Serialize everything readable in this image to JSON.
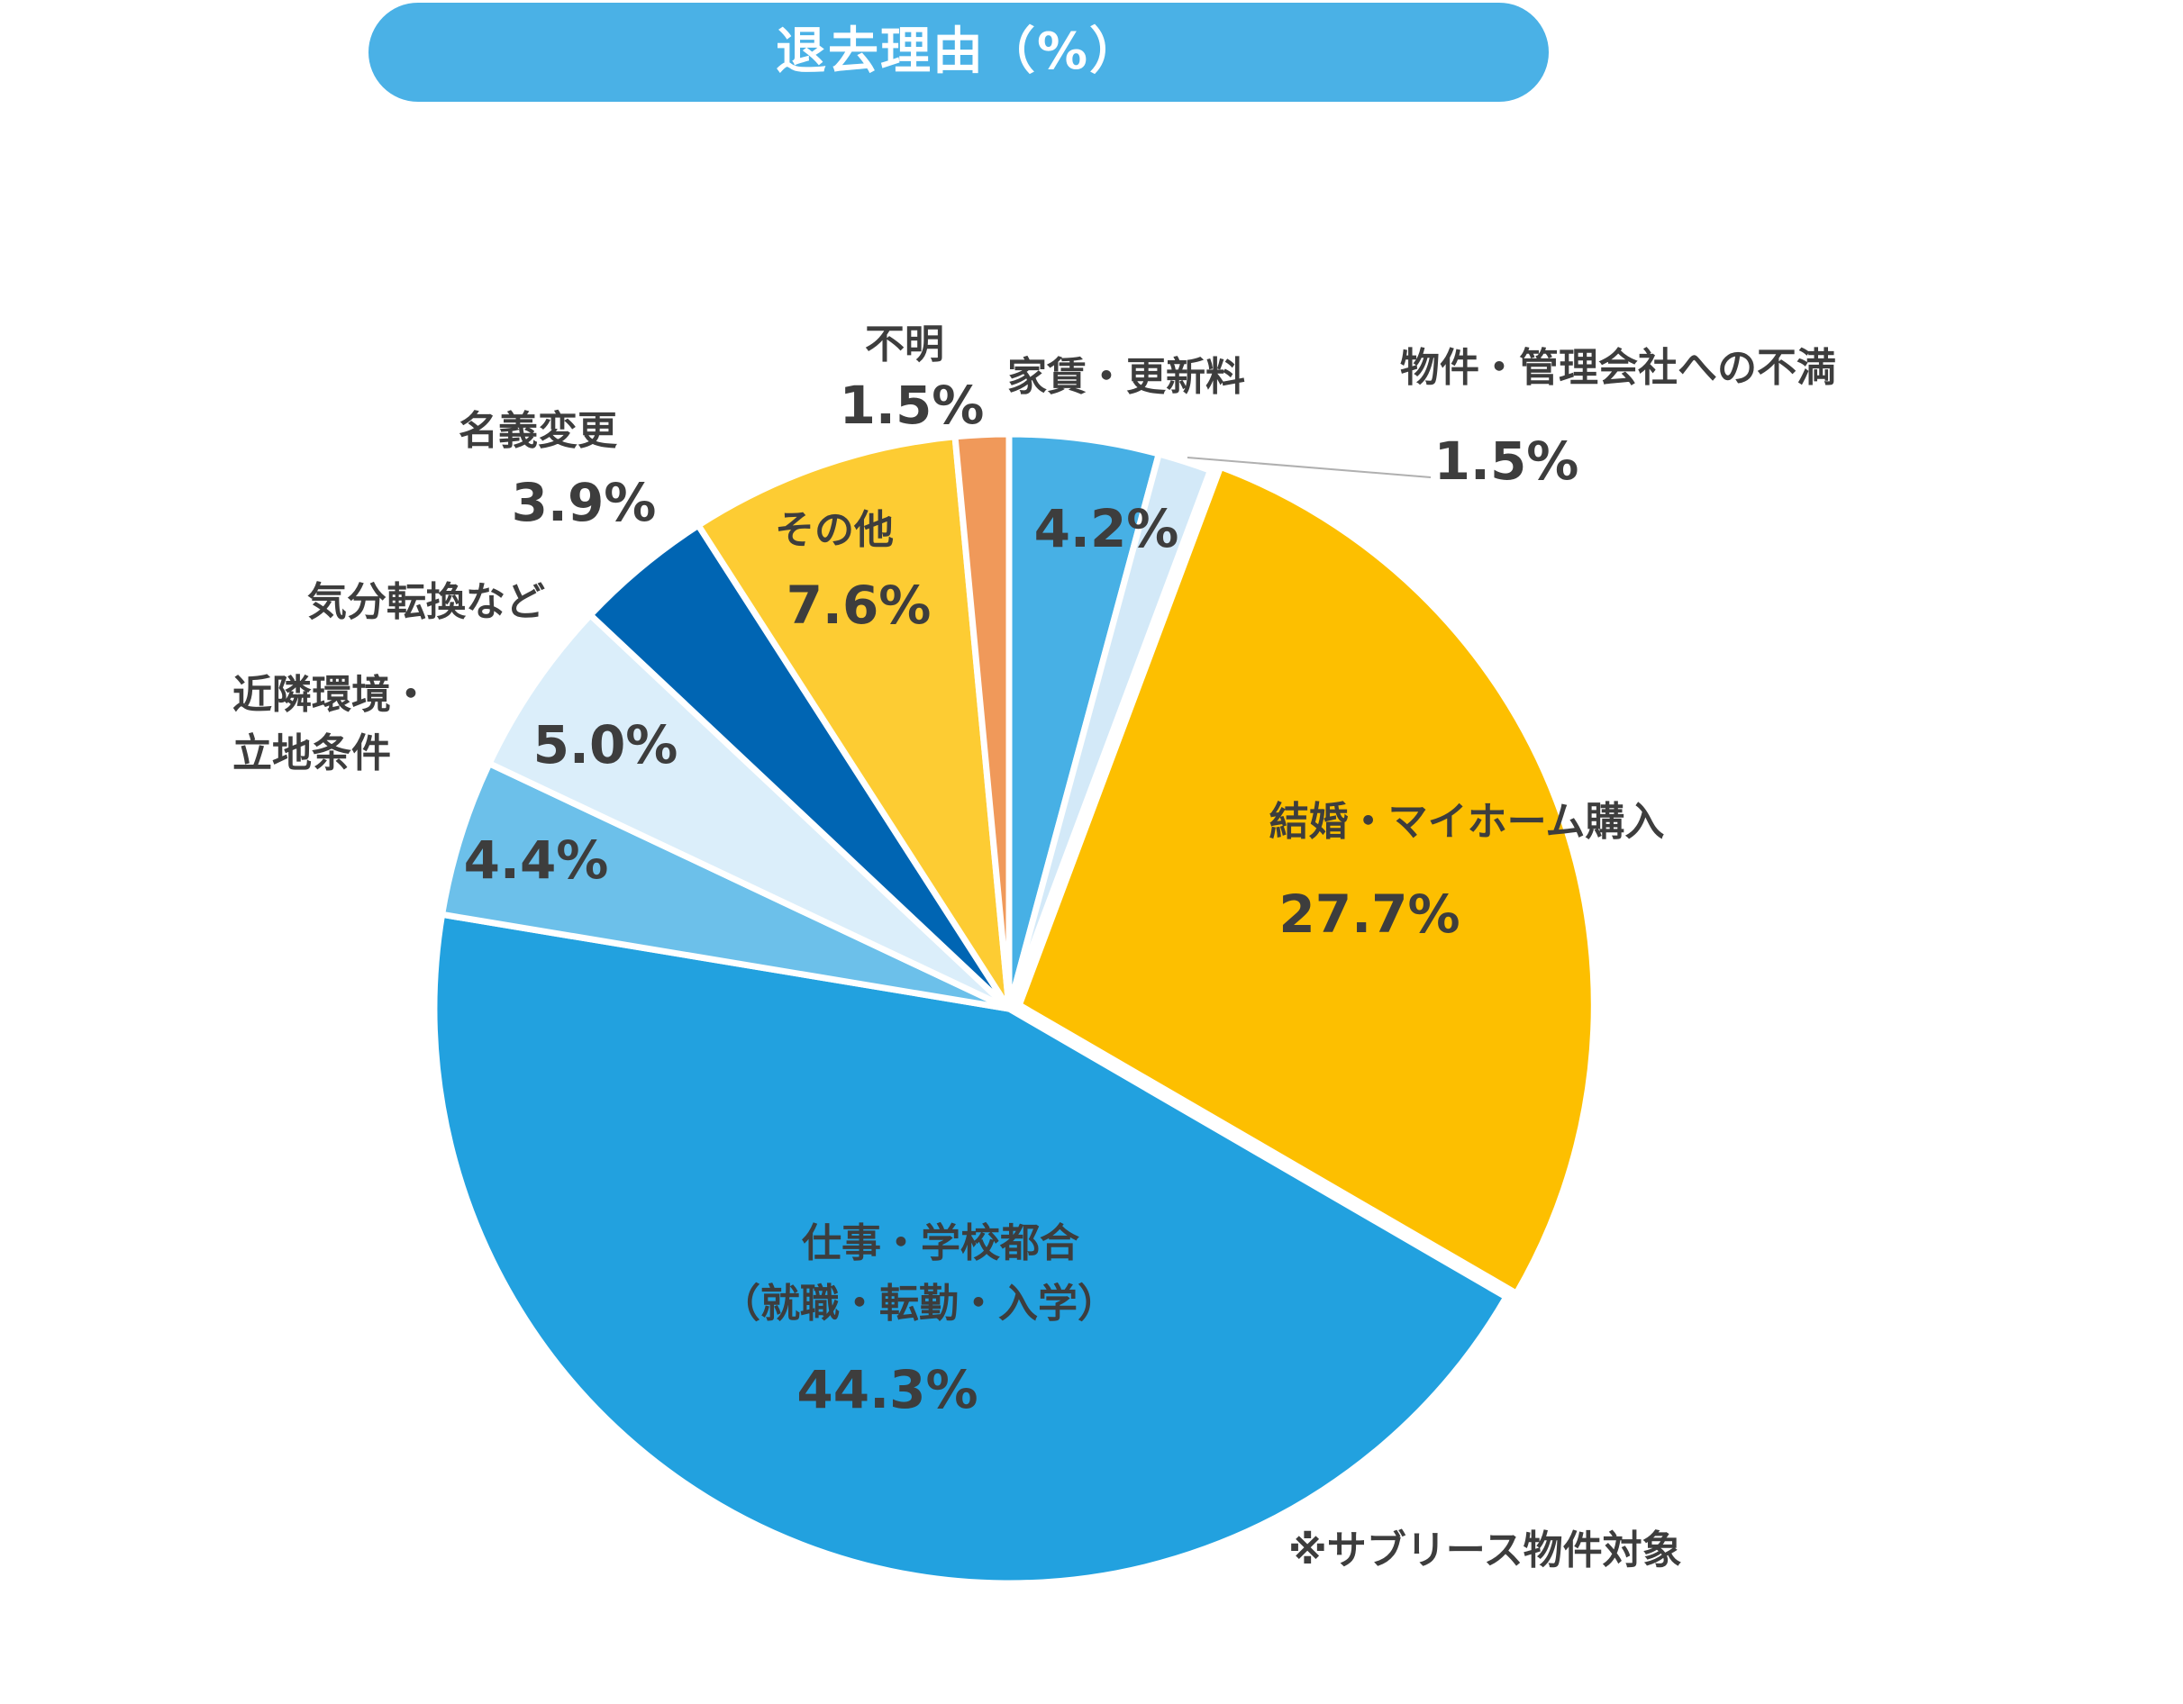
{
  "title": "退去理由（%）",
  "note": "※サブリース物件対象",
  "chart_data": {
    "type": "pie",
    "title": "退去理由（%）",
    "slices": [
      {
        "label": "家賃・更新料",
        "value": 4.2,
        "value_label": "4.2%",
        "color": "#47b0e5"
      },
      {
        "label": "物件・管理会社への不満",
        "value": 1.5,
        "value_label": "1.5%",
        "color": "#d3e9f8"
      },
      {
        "label": "結婚・マイホーム購入",
        "value": 27.7,
        "value_label": "27.7%",
        "color": "#fdbf00"
      },
      {
        "label": "仕事・学校都合（就職・転勤・入学）",
        "label_lines": [
          "仕事・学校都合",
          "（就職・転勤・入学）"
        ],
        "value": 44.3,
        "value_label": "44.3%",
        "color": "#22a1df"
      },
      {
        "label": "近隣環境・立地条件",
        "label_lines": [
          "近隣環境・",
          "立地条件"
        ],
        "value": 4.4,
        "value_label": "4.4%",
        "color": "#6cc0ea"
      },
      {
        "label": "気分転換など",
        "value": 5.0,
        "value_label": "5.0%",
        "color": "#dbeefa"
      },
      {
        "label": "名義変更",
        "value": 3.9,
        "value_label": "3.9%",
        "color": "#0065b3"
      },
      {
        "label": "その他",
        "value": 7.6,
        "value_label": "7.6%",
        "color": "#fdcc33"
      },
      {
        "label": "不明",
        "value": 1.5,
        "value_label": "1.5%",
        "color": "#f0995a"
      }
    ]
  }
}
